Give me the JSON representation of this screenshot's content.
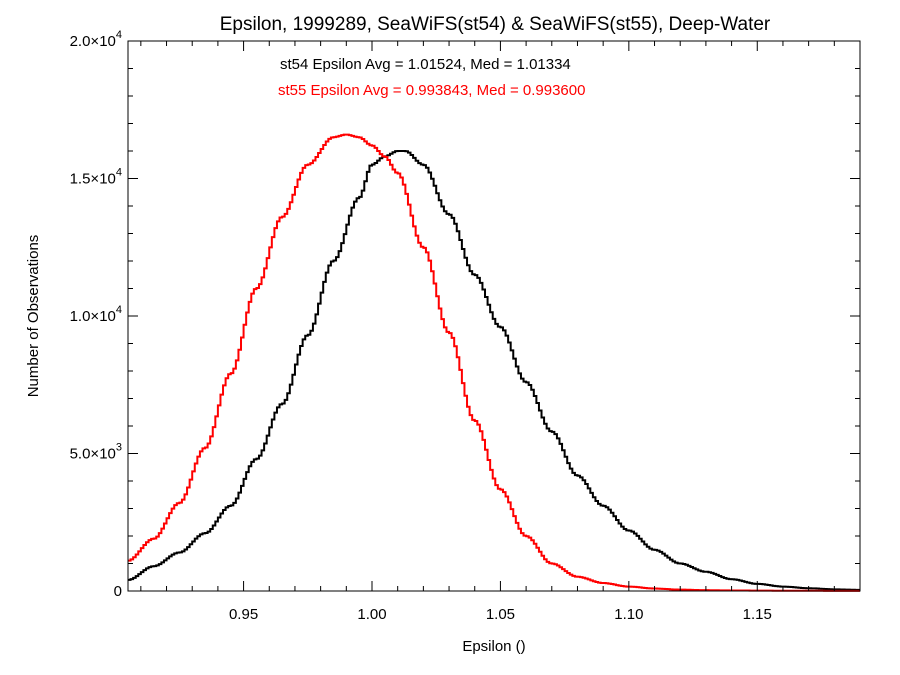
{
  "chart_data": {
    "type": "line",
    "step": true,
    "title": "Epsilon, 1999289, SeaWiFS(st54) & SeaWiFS(st55), Deep-Water",
    "xlabel": "Epsilon ()",
    "ylabel": "Number of Observations",
    "xlim": [
      0.905,
      1.19
    ],
    "ylim": [
      0,
      20000
    ],
    "xticks": [
      0.95,
      1.0,
      1.05,
      1.1,
      1.15
    ],
    "xtick_labels": [
      "0.95",
      "1.00",
      "1.05",
      "1.10",
      "1.15"
    ],
    "yticks": [
      0,
      5000,
      10000,
      15000,
      20000
    ],
    "ytick_labels": [
      {
        "mant": "0",
        "exp": ""
      },
      {
        "mant": "5.0×10",
        "exp": "3"
      },
      {
        "mant": "1.0×10",
        "exp": "4"
      },
      {
        "mant": "1.5×10",
        "exp": "4"
      },
      {
        "mant": "2.0×10",
        "exp": "4"
      }
    ],
    "grid": false,
    "series": [
      {
        "name": "st54",
        "color": "#000000",
        "x": [
          0.905,
          0.915,
          0.925,
          0.935,
          0.945,
          0.955,
          0.965,
          0.975,
          0.985,
          0.995,
          1.0,
          1.005,
          1.01,
          1.013,
          1.02,
          1.03,
          1.04,
          1.05,
          1.06,
          1.07,
          1.08,
          1.09,
          1.1,
          1.11,
          1.12,
          1.13,
          1.14,
          1.15,
          1.16,
          1.17,
          1.18,
          1.19
        ],
        "values": [
          400,
          900,
          1400,
          2100,
          3100,
          4800,
          6800,
          9300,
          12000,
          14300,
          15500,
          15800,
          16000,
          16000,
          15500,
          13700,
          11500,
          9600,
          7600,
          5800,
          4200,
          3100,
          2200,
          1500,
          1000,
          700,
          430,
          260,
          160,
          100,
          60,
          40
        ]
      },
      {
        "name": "st55",
        "color": "#ff0000",
        "x": [
          0.905,
          0.915,
          0.925,
          0.935,
          0.945,
          0.955,
          0.965,
          0.975,
          0.985,
          0.99,
          0.995,
          1.0,
          1.005,
          1.01,
          1.02,
          1.03,
          1.04,
          1.05,
          1.06,
          1.07,
          1.08,
          1.09,
          1.1,
          1.11,
          1.12,
          1.13,
          1.14,
          1.15,
          1.16,
          1.17,
          1.18,
          1.19
        ],
        "values": [
          1100,
          1900,
          3200,
          5200,
          7900,
          11000,
          13600,
          15500,
          16500,
          16600,
          16500,
          16200,
          15800,
          15200,
          12500,
          9400,
          6200,
          3700,
          2000,
          1000,
          520,
          290,
          160,
          90,
          50,
          30,
          20,
          15,
          10,
          8,
          6,
          5
        ]
      }
    ],
    "annotations": [
      {
        "text": "st54 Epsilon Avg = 1.01524, Med = 1.01334",
        "color": "#000000"
      },
      {
        "text": "st55 Epsilon Avg = 0.993843, Med = 0.993600",
        "color": "#ff0000"
      }
    ]
  }
}
